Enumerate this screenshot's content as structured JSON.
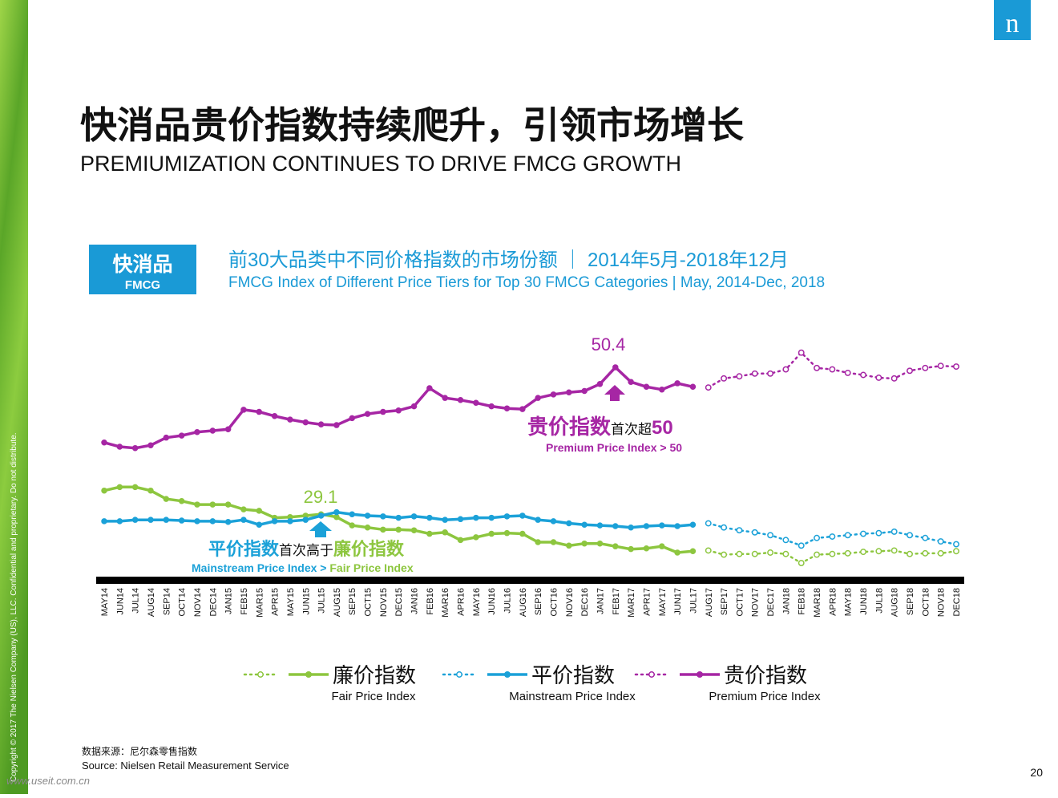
{
  "header": {
    "title": "快消品贵价指数持续爬升，引领市场增长",
    "subtitle": "PREMIUMIZATION CONTINUES TO DRIVE FMCG GROWTH",
    "logo": "n",
    "badge": "快消品",
    "badge_en": "FMCG"
  },
  "chart_data": {
    "type": "line",
    "title": "前30大品类中不同价格指数的市场份额 ｜ 2014年5月-2018年12月",
    "subtitle": "FMCG Index of Different Price Tiers for Top 30 FMCG Categories | May, 2014-Dec, 2018",
    "categories": [
      "MAY14",
      "JUN14",
      "JUL14",
      "AUG14",
      "SEP14",
      "OCT14",
      "NOV14",
      "DEC14",
      "JAN15",
      "FEB15",
      "MAR15",
      "APR15",
      "MAY15",
      "JUN15",
      "JUL15",
      "AUG15",
      "SEP15",
      "OCT15",
      "NOV15",
      "DEC15",
      "JAN16",
      "FEB16",
      "MAR16",
      "APR16",
      "MAY16",
      "JUN16",
      "JUL16",
      "AUG16",
      "SEP16",
      "OCT16",
      "NOV16",
      "DEC16",
      "JAN17",
      "FEB17",
      "MAR17",
      "APR17",
      "MAY17",
      "JUN17",
      "JUL17",
      "AUG17",
      "SEP17",
      "OCT17",
      "NOV17",
      "DEC17",
      "JAN18",
      "FEB18",
      "MAR18",
      "APR18",
      "MAY18",
      "JUN18",
      "JUL18",
      "AUG18",
      "SEP18",
      "OCT18",
      "NOV18",
      "DEC18"
    ],
    "ylim": [
      20,
      55
    ],
    "series": [
      {
        "name": "廉价指数",
        "name_en": "Fair Price Index",
        "color": "#8dc63f",
        "values": [
          32.7,
          33.2,
          33.2,
          32.7,
          31.5,
          31.2,
          30.7,
          30.7,
          30.7,
          30.0,
          29.8,
          28.8,
          28.9,
          29.1,
          29.3,
          28.9,
          27.7,
          27.4,
          27.1,
          27.1,
          27.0,
          26.5,
          26.7,
          25.6,
          26.0,
          26.5,
          26.6,
          26.5,
          25.3,
          25.3,
          24.8,
          25.1,
          25.1,
          24.7,
          24.3,
          24.4,
          24.7,
          23.8,
          24.0,
          null,
          null,
          null,
          null,
          null,
          null,
          null,
          null,
          null,
          null,
          null,
          null,
          null,
          null,
          null,
          null,
          null
        ],
        "projected": [
          null,
          null,
          null,
          null,
          null,
          null,
          null,
          null,
          null,
          null,
          null,
          null,
          null,
          null,
          null,
          null,
          null,
          null,
          null,
          null,
          null,
          null,
          null,
          null,
          null,
          null,
          null,
          null,
          null,
          null,
          null,
          null,
          null,
          null,
          null,
          null,
          null,
          null,
          null,
          24.1,
          23.5,
          23.6,
          23.6,
          23.8,
          23.6,
          22.3,
          23.5,
          23.6,
          23.7,
          23.9,
          24.0,
          24.1,
          23.6,
          23.7,
          23.7,
          24.0
        ]
      },
      {
        "name": "平价指数",
        "name_en": "Mainstream Price Index",
        "color": "#1ba1d8",
        "values": [
          28.3,
          28.3,
          28.5,
          28.5,
          28.5,
          28.4,
          28.3,
          28.3,
          28.2,
          28.5,
          27.8,
          28.3,
          28.3,
          28.5,
          29.1,
          29.6,
          29.3,
          29.1,
          29.0,
          28.8,
          29.0,
          28.8,
          28.5,
          28.6,
          28.8,
          28.8,
          29.0,
          29.1,
          28.5,
          28.3,
          28.0,
          27.8,
          27.7,
          27.6,
          27.4,
          27.6,
          27.7,
          27.6,
          27.8,
          null,
          null,
          null,
          null,
          null,
          null,
          null,
          null,
          null,
          null,
          null,
          null,
          null,
          null,
          null,
          null,
          null
        ],
        "projected": [
          null,
          null,
          null,
          null,
          null,
          null,
          null,
          null,
          null,
          null,
          null,
          null,
          null,
          null,
          null,
          null,
          null,
          null,
          null,
          null,
          null,
          null,
          null,
          null,
          null,
          null,
          null,
          null,
          null,
          null,
          null,
          null,
          null,
          null,
          null,
          null,
          null,
          null,
          null,
          28.0,
          27.4,
          27.0,
          26.7,
          26.3,
          25.6,
          24.8,
          25.9,
          26.1,
          26.3,
          26.5,
          26.6,
          26.8,
          26.3,
          25.9,
          25.4,
          25.0
        ]
      },
      {
        "name": "贵价指数",
        "name_en": "Premium Price Index",
        "color": "#a626a4",
        "values": [
          39.6,
          39.0,
          38.8,
          39.2,
          40.3,
          40.6,
          41.1,
          41.3,
          41.5,
          44.3,
          44.0,
          43.4,
          42.9,
          42.5,
          42.2,
          42.1,
          43.1,
          43.7,
          44.0,
          44.2,
          44.8,
          47.4,
          46.0,
          45.7,
          45.3,
          44.8,
          44.5,
          44.4,
          46.0,
          46.5,
          46.8,
          47.0,
          48.0,
          50.4,
          48.3,
          47.6,
          47.2,
          48.1,
          47.6,
          null,
          null,
          null,
          null,
          null,
          null,
          null,
          null,
          null,
          null,
          null,
          null,
          null,
          null,
          null,
          null,
          null
        ],
        "projected": [
          null,
          null,
          null,
          null,
          null,
          null,
          null,
          null,
          null,
          null,
          null,
          null,
          null,
          null,
          null,
          null,
          null,
          null,
          null,
          null,
          null,
          null,
          null,
          null,
          null,
          null,
          null,
          null,
          null,
          null,
          null,
          null,
          null,
          null,
          null,
          null,
          null,
          null,
          null,
          47.5,
          48.8,
          49.1,
          49.5,
          49.5,
          50.1,
          52.5,
          50.3,
          50.1,
          49.6,
          49.3,
          48.9,
          48.8,
          49.9,
          50.3,
          50.6,
          50.5
        ]
      }
    ],
    "annotations": [
      {
        "text": "50.4"
      },
      {
        "text": "29.1"
      },
      {
        "parts": [
          "贵价指数",
          "首次超",
          "50"
        ],
        "text_en": "Premium Price Index > 50"
      },
      {
        "parts": [
          "平价指数",
          "首次高于",
          "廉价指数"
        ],
        "text_en": [
          "Mainstream Price Index >",
          "Fair Price Index"
        ]
      }
    ]
  },
  "footer": {
    "source_cn": "数据来源：尼尔森零售指数",
    "source_en": "Source: Nielsen Retail Measurement Service",
    "page": "20",
    "copyright": "Copyright © 2017 The Nielsen Company (US), LLC. Confidential and proprietary. Do not distribute.",
    "watermark": "www.useit.com.cn"
  }
}
